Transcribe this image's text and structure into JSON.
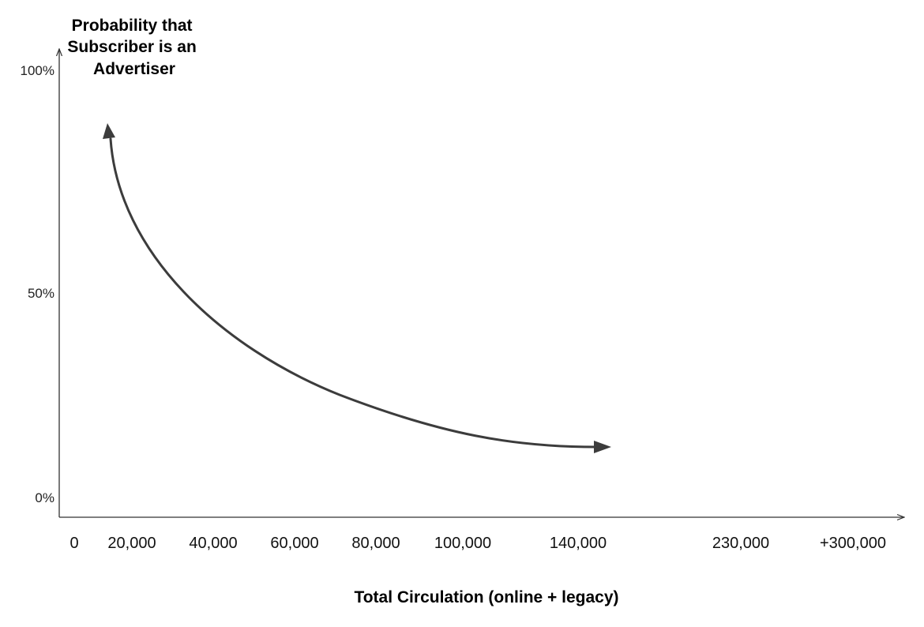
{
  "title_lines": [
    "Probability that",
    "Subscriber is an",
    "Advertiser"
  ],
  "x_axis_title": "Total Circulation (online + legacy)",
  "y_ticks": [
    "100%",
    "50%",
    "0%"
  ],
  "x_ticks": [
    "0",
    "20,000",
    "40,000",
    "60,000",
    "80,000",
    "100,000",
    "140,000",
    "230,000",
    "+300,000"
  ],
  "colors": {
    "axis": "#333333",
    "curve": "#3c3c3c"
  },
  "curve": {
    "description_icon": "double-headed-arrow-curve"
  }
}
